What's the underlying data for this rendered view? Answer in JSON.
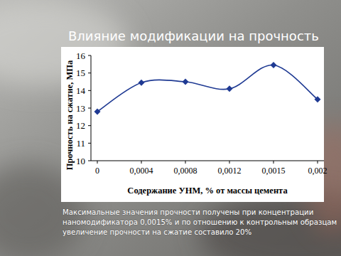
{
  "chart_data": {
    "type": "line",
    "title": "Влияние модификации на прочность",
    "x_label": "Содержание УНМ, % от массы цемента",
    "y_label": "Прочность на сжатие, МПа",
    "categories": [
      "0",
      "0,0004",
      "0,0008",
      "0,0012",
      "0,0015",
      "0,002"
    ],
    "values": [
      12.8,
      14.45,
      14.5,
      14.1,
      15.45,
      13.5
    ],
    "color": "#1f3a93",
    "marker": "diamond",
    "line_style": "smooth",
    "ylim": [
      10,
      16
    ],
    "yticks": [
      10,
      11,
      12,
      13,
      14,
      15,
      16
    ],
    "grid": false,
    "annotations": [
      "Максимальные значения прочности получены при концентрации",
      "наномодификатора 0,0015% и по отношению к контрольным образцам",
      "увеличение прочности на сжатие составило 20%"
    ]
  }
}
